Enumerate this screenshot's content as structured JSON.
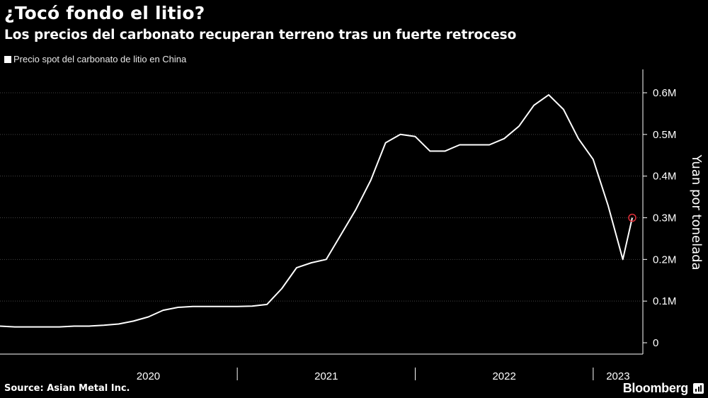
{
  "header": {
    "title": "¿Tocó fondo el litio?",
    "subtitle": "Los precios del carbonato recuperan terreno tras un fuerte retroceso"
  },
  "legend": {
    "label": "Precio spot del carbonato de litio en China"
  },
  "footer": {
    "source": "Source: Asian Metal Inc.",
    "brand": "Bloomberg"
  },
  "colors": {
    "background": "#000000",
    "line": "#ffffff",
    "grid": "#444444",
    "marker": "#e0303a"
  },
  "chart_data": {
    "type": "line",
    "title": "¿Tocó fondo el litio?",
    "subtitle": "Los precios del carbonato recuperan terreno tras un fuerte retroceso",
    "ylabel": "Yuan por tonelada",
    "xlabel": "",
    "ylim": [
      0,
      600000
    ],
    "yticks": [
      0,
      100000,
      200000,
      300000,
      400000,
      500000,
      600000
    ],
    "ytick_labels": [
      "0",
      "0.1M",
      "0.2M",
      "0.3M",
      "0.4M",
      "0.5M",
      "0.6M"
    ],
    "x_categories": [
      "2020",
      "2021",
      "2022",
      "2023"
    ],
    "xlim": [
      "2019-09",
      "2023-04"
    ],
    "grid": true,
    "legend_position": "top-left",
    "series": [
      {
        "name": "Precio spot del carbonato de litio en China",
        "x": [
          "2019-09",
          "2019-10",
          "2019-11",
          "2019-12",
          "2020-01",
          "2020-02",
          "2020-03",
          "2020-04",
          "2020-05",
          "2020-06",
          "2020-07",
          "2020-08",
          "2020-09",
          "2020-10",
          "2020-11",
          "2020-12",
          "2021-01",
          "2021-02",
          "2021-03",
          "2021-04",
          "2021-05",
          "2021-06",
          "2021-07",
          "2021-08",
          "2021-09",
          "2021-10",
          "2021-11",
          "2021-12",
          "2022-01",
          "2022-02",
          "2022-03",
          "2022-04",
          "2022-05",
          "2022-06",
          "2022-07",
          "2022-08",
          "2022-09",
          "2022-10",
          "2022-11",
          "2022-12",
          "2023-01",
          "2023-02",
          "2023-03",
          "2023-03-20"
        ],
        "values": [
          40000,
          38000,
          38000,
          38000,
          38000,
          40000,
          40000,
          42000,
          45000,
          52000,
          62000,
          78000,
          85000,
          87000,
          87000,
          87000,
          87000,
          88000,
          92000,
          130000,
          180000,
          192000,
          200000,
          260000,
          320000,
          390000,
          480000,
          500000,
          495000,
          460000,
          460000,
          475000,
          475000,
          475000,
          490000,
          520000,
          570000,
          595000,
          560000,
          490000,
          440000,
          330000,
          200000,
          300000
        ]
      }
    ],
    "highlight": {
      "x": "2023-03-20",
      "value": 300000
    }
  }
}
